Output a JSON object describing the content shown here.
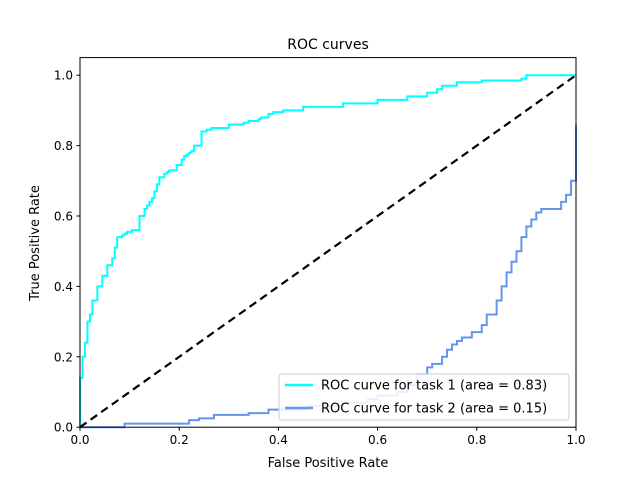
{
  "chart_data": {
    "type": "line",
    "title": "ROC curves",
    "xlabel": "False Positive Rate",
    "ylabel": "True Positive Rate",
    "xlim": [
      0.0,
      1.0
    ],
    "ylim": [
      0.0,
      1.05
    ],
    "xticks": [
      0.0,
      0.2,
      0.4,
      0.6,
      0.8,
      1.0
    ],
    "yticks": [
      0.0,
      0.2,
      0.4,
      0.6,
      0.8,
      1.0
    ],
    "xtick_labels": [
      "0.0",
      "0.2",
      "0.4",
      "0.6",
      "0.8",
      "1.0"
    ],
    "ytick_labels": [
      "0.0",
      "0.2",
      "0.4",
      "0.6",
      "0.8",
      "1.0"
    ],
    "grid": false,
    "legend_position": "lower-right",
    "series": [
      {
        "name": "ROC curve for task 1 (area = 0.83)",
        "color": "#00ffff",
        "style": "step",
        "x": [
          0.0,
          0.0,
          0.005,
          0.005,
          0.01,
          0.01,
          0.015,
          0.015,
          0.02,
          0.02,
          0.025,
          0.025,
          0.035,
          0.035,
          0.045,
          0.045,
          0.055,
          0.055,
          0.065,
          0.065,
          0.07,
          0.07,
          0.075,
          0.075,
          0.085,
          0.085,
          0.09,
          0.09,
          0.095,
          0.095,
          0.105,
          0.105,
          0.12,
          0.12,
          0.13,
          0.13,
          0.135,
          0.135,
          0.14,
          0.14,
          0.145,
          0.145,
          0.15,
          0.15,
          0.155,
          0.155,
          0.16,
          0.16,
          0.17,
          0.17,
          0.175,
          0.175,
          0.18,
          0.18,
          0.195,
          0.195,
          0.205,
          0.205,
          0.21,
          0.21,
          0.215,
          0.215,
          0.22,
          0.22,
          0.225,
          0.225,
          0.23,
          0.23,
          0.245,
          0.245,
          0.255,
          0.255,
          0.265,
          0.265,
          0.3,
          0.3,
          0.33,
          0.33,
          0.34,
          0.34,
          0.36,
          0.36,
          0.365,
          0.365,
          0.38,
          0.38,
          0.39,
          0.39,
          0.41,
          0.41,
          0.45,
          0.45,
          0.53,
          0.53,
          0.6,
          0.6,
          0.66,
          0.66,
          0.7,
          0.7,
          0.72,
          0.72,
          0.73,
          0.73,
          0.76,
          0.76,
          0.81,
          0.81,
          0.89,
          0.89,
          0.9,
          0.9,
          0.99,
          0.99,
          1.0
        ],
        "y": [
          0.0,
          0.14,
          0.14,
          0.2,
          0.2,
          0.24,
          0.24,
          0.3,
          0.3,
          0.32,
          0.32,
          0.36,
          0.36,
          0.4,
          0.4,
          0.43,
          0.43,
          0.46,
          0.46,
          0.48,
          0.48,
          0.51,
          0.51,
          0.54,
          0.54,
          0.545,
          0.545,
          0.55,
          0.55,
          0.555,
          0.555,
          0.56,
          0.56,
          0.6,
          0.6,
          0.62,
          0.62,
          0.63,
          0.63,
          0.64,
          0.64,
          0.65,
          0.65,
          0.67,
          0.67,
          0.69,
          0.69,
          0.71,
          0.71,
          0.72,
          0.72,
          0.725,
          0.725,
          0.73,
          0.73,
          0.745,
          0.745,
          0.76,
          0.76,
          0.77,
          0.77,
          0.775,
          0.775,
          0.78,
          0.78,
          0.785,
          0.785,
          0.8,
          0.8,
          0.84,
          0.84,
          0.845,
          0.845,
          0.85,
          0.85,
          0.86,
          0.86,
          0.865,
          0.865,
          0.87,
          0.87,
          0.875,
          0.875,
          0.88,
          0.88,
          0.89,
          0.89,
          0.895,
          0.895,
          0.9,
          0.9,
          0.91,
          0.91,
          0.92,
          0.92,
          0.93,
          0.93,
          0.94,
          0.94,
          0.95,
          0.95,
          0.96,
          0.96,
          0.97,
          0.97,
          0.98,
          0.98,
          0.985,
          0.985,
          0.99,
          0.99,
          1.0,
          1.0,
          1.0,
          1.0
        ]
      },
      {
        "name": "ROC curve for task 2 (area = 0.15)",
        "color": "#6495ed",
        "style": "step",
        "x": [
          0.0,
          0.09,
          0.09,
          0.22,
          0.22,
          0.24,
          0.24,
          0.27,
          0.27,
          0.34,
          0.34,
          0.38,
          0.38,
          0.46,
          0.46,
          0.53,
          0.53,
          0.58,
          0.58,
          0.6,
          0.6,
          0.64,
          0.64,
          0.66,
          0.66,
          0.68,
          0.68,
          0.7,
          0.7,
          0.71,
          0.71,
          0.73,
          0.73,
          0.74,
          0.74,
          0.75,
          0.75,
          0.76,
          0.76,
          0.77,
          0.77,
          0.79,
          0.79,
          0.81,
          0.81,
          0.82,
          0.82,
          0.84,
          0.84,
          0.85,
          0.85,
          0.86,
          0.86,
          0.87,
          0.87,
          0.88,
          0.88,
          0.89,
          0.89,
          0.9,
          0.9,
          0.91,
          0.91,
          0.92,
          0.92,
          0.93,
          0.93,
          0.94,
          0.94,
          0.97,
          0.97,
          0.98,
          0.98,
          0.99,
          0.99,
          1.0,
          1.0
        ],
        "y": [
          0.0,
          0.0,
          0.01,
          0.01,
          0.02,
          0.02,
          0.025,
          0.025,
          0.035,
          0.035,
          0.04,
          0.04,
          0.05,
          0.05,
          0.06,
          0.06,
          0.07,
          0.07,
          0.08,
          0.08,
          0.09,
          0.09,
          0.1,
          0.1,
          0.12,
          0.12,
          0.15,
          0.15,
          0.17,
          0.17,
          0.18,
          0.18,
          0.2,
          0.2,
          0.22,
          0.22,
          0.235,
          0.235,
          0.245,
          0.245,
          0.255,
          0.255,
          0.27,
          0.27,
          0.29,
          0.29,
          0.32,
          0.32,
          0.36,
          0.36,
          0.4,
          0.4,
          0.44,
          0.44,
          0.47,
          0.47,
          0.5,
          0.5,
          0.54,
          0.54,
          0.57,
          0.57,
          0.59,
          0.59,
          0.61,
          0.61,
          0.62,
          0.62,
          0.62,
          0.62,
          0.64,
          0.64,
          0.66,
          0.66,
          0.7,
          0.7,
          0.86
        ]
      },
      {
        "name": "",
        "color": "#000000",
        "style": "dashed",
        "x": [
          0.0,
          1.0
        ],
        "y": [
          0.0,
          1.0
        ]
      }
    ]
  }
}
